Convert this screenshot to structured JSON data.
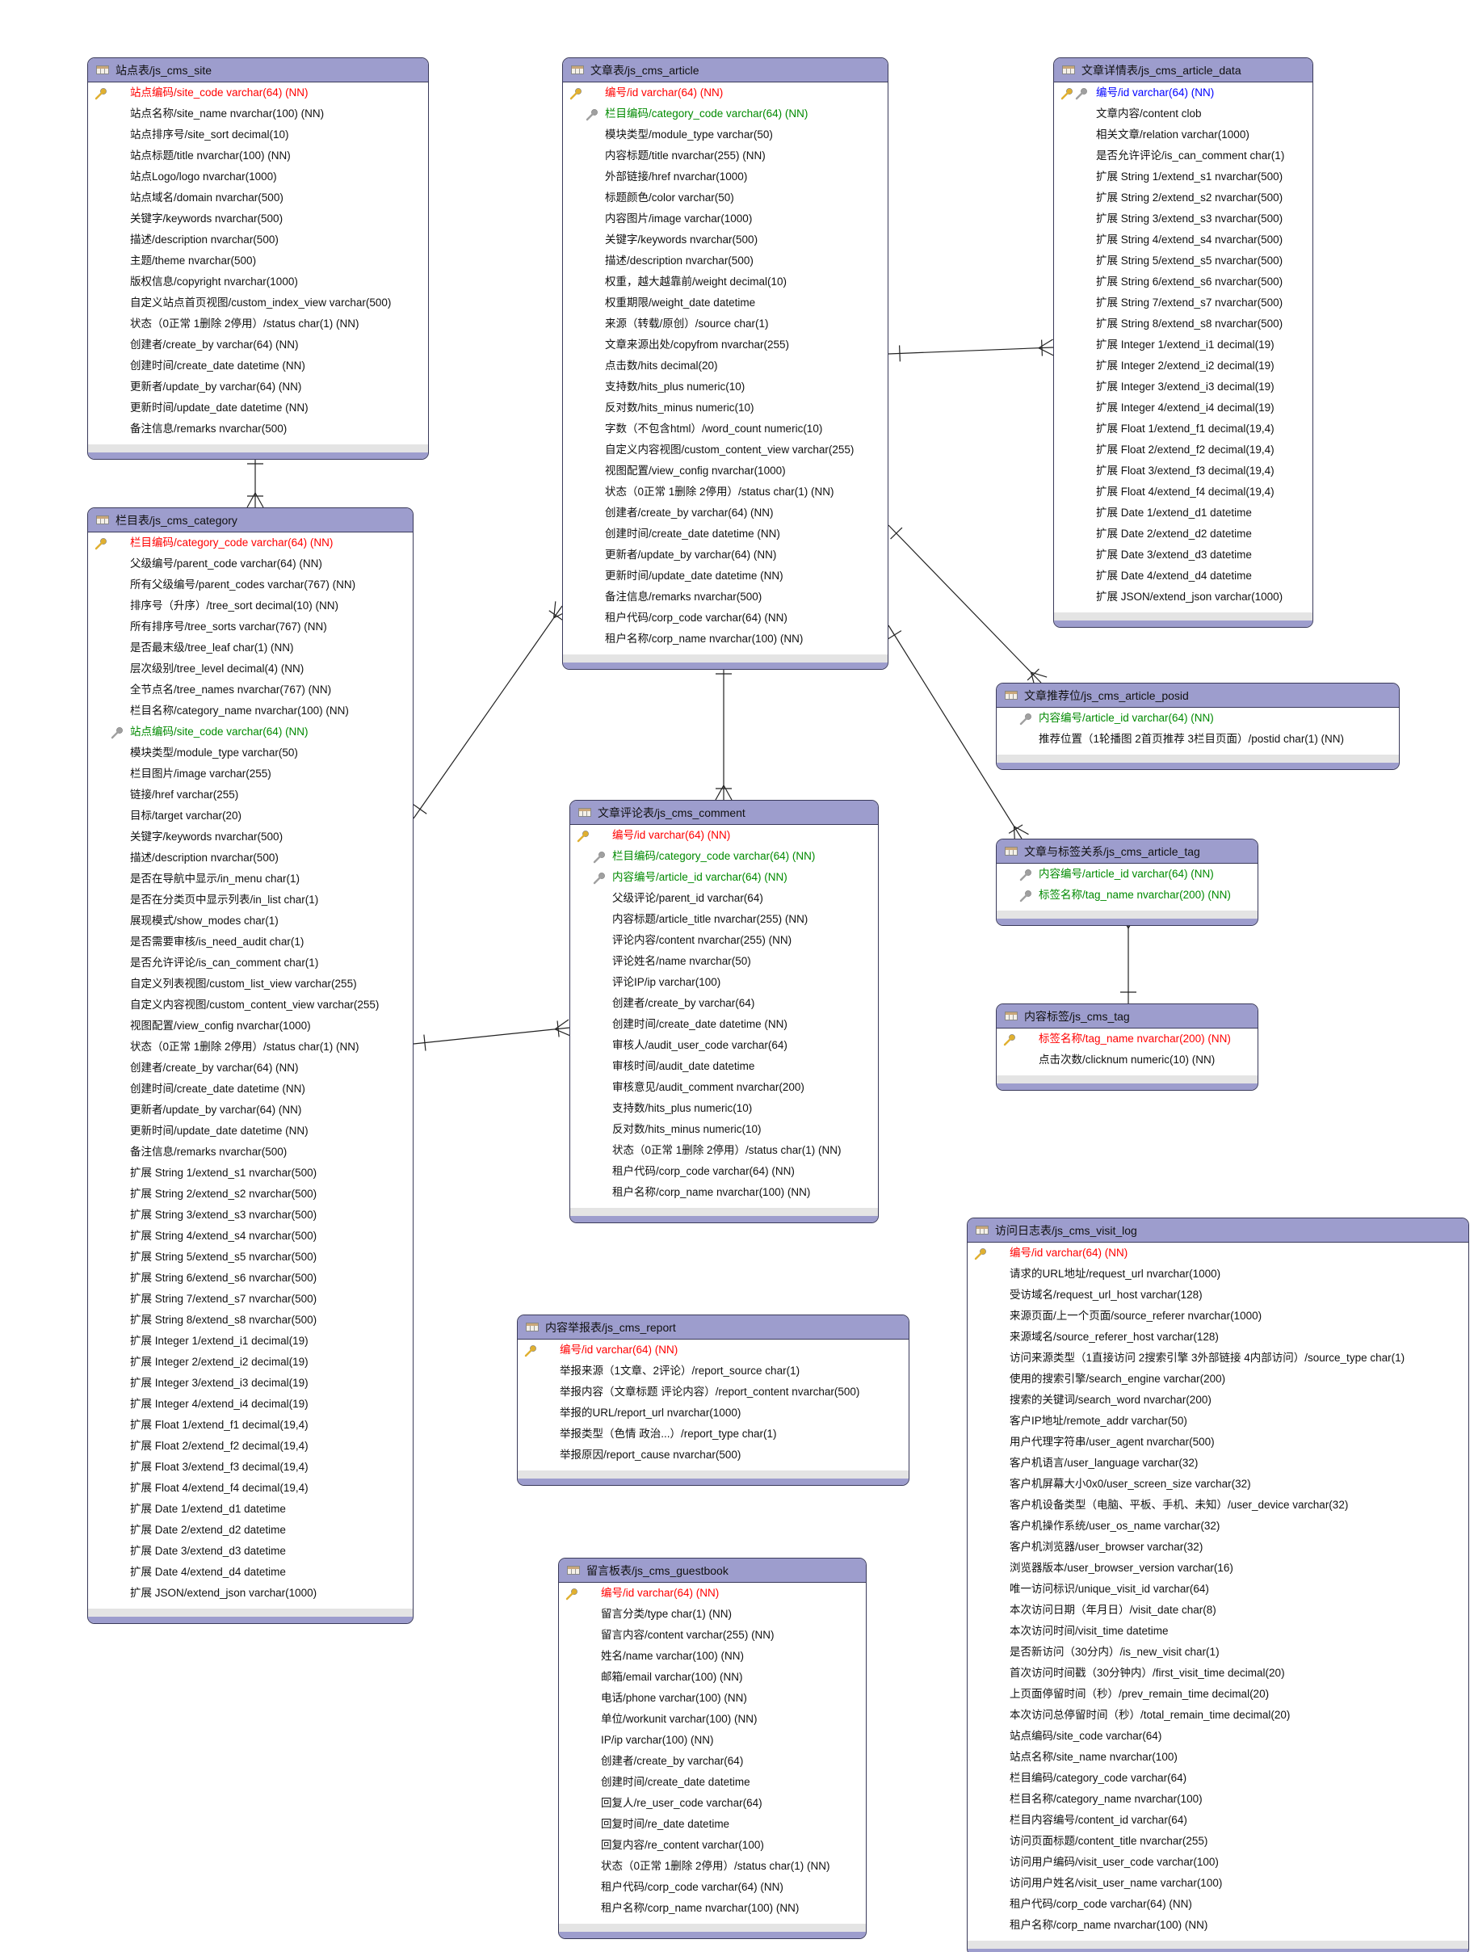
{
  "colors": {
    "header": "#9d9dcd",
    "primary_key": "#ff0000",
    "foreign_key": "#008a00",
    "primary_foreign_key": "#0000ff",
    "border": "#3a3a5a"
  },
  "tables": [
    {
      "id": "site",
      "title": "站点表/js_cms_site",
      "rows": [
        {
          "text": "站点编码/site_code varchar(64) (NN)",
          "kind": "pk"
        },
        {
          "text": "站点名称/site_name nvarchar(100) (NN)"
        },
        {
          "text": "站点排序号/site_sort decimal(10)"
        },
        {
          "text": "站点标题/title nvarchar(100) (NN)"
        },
        {
          "text": "站点Logo/logo nvarchar(1000)"
        },
        {
          "text": "站点域名/domain nvarchar(500)"
        },
        {
          "text": "关键字/keywords nvarchar(500)"
        },
        {
          "text": "描述/description nvarchar(500)"
        },
        {
          "text": "主题/theme nvarchar(500)"
        },
        {
          "text": "版权信息/copyright nvarchar(1000)"
        },
        {
          "text": "自定义站点首页视图/custom_index_view varchar(500)"
        },
        {
          "text": "状态（0正常 1删除 2停用）/status char(1) (NN)"
        },
        {
          "text": "创建者/create_by varchar(64) (NN)"
        },
        {
          "text": "创建时间/create_date datetime (NN)"
        },
        {
          "text": "更新者/update_by varchar(64) (NN)"
        },
        {
          "text": "更新时间/update_date datetime (NN)"
        },
        {
          "text": "备注信息/remarks nvarchar(500)"
        }
      ]
    },
    {
      "id": "category",
      "title": "栏目表/js_cms_category",
      "rows": [
        {
          "text": "栏目编码/category_code varchar(64) (NN)",
          "kind": "pk"
        },
        {
          "text": "父级编号/parent_code varchar(64) (NN)"
        },
        {
          "text": "所有父级编号/parent_codes varchar(767) (NN)"
        },
        {
          "text": "排序号（升序）/tree_sort decimal(10) (NN)"
        },
        {
          "text": "所有排序号/tree_sorts varchar(767) (NN)"
        },
        {
          "text": "是否最末级/tree_leaf char(1) (NN)"
        },
        {
          "text": "层次级别/tree_level decimal(4) (NN)"
        },
        {
          "text": "全节点名/tree_names nvarchar(767) (NN)"
        },
        {
          "text": "栏目名称/category_name nvarchar(100) (NN)"
        },
        {
          "text": "站点编码/site_code varchar(64) (NN)",
          "kind": "fk"
        },
        {
          "text": "模块类型/module_type varchar(50)"
        },
        {
          "text": "栏目图片/image varchar(255)"
        },
        {
          "text": "链接/href varchar(255)"
        },
        {
          "text": "目标/target varchar(20)"
        },
        {
          "text": "关键字/keywords nvarchar(500)"
        },
        {
          "text": "描述/description nvarchar(500)"
        },
        {
          "text": "是否在导航中显示/in_menu char(1)"
        },
        {
          "text": "是否在分类页中显示列表/in_list char(1)"
        },
        {
          "text": "展现模式/show_modes char(1)"
        },
        {
          "text": "是否需要审核/is_need_audit char(1)"
        },
        {
          "text": "是否允许评论/is_can_comment char(1)"
        },
        {
          "text": "自定义列表视图/custom_list_view varchar(255)"
        },
        {
          "text": "自定义内容视图/custom_content_view varchar(255)"
        },
        {
          "text": "视图配置/view_config nvarchar(1000)"
        },
        {
          "text": "状态（0正常 1删除 2停用）/status char(1) (NN)"
        },
        {
          "text": "创建者/create_by varchar(64) (NN)"
        },
        {
          "text": "创建时间/create_date datetime (NN)"
        },
        {
          "text": "更新者/update_by varchar(64) (NN)"
        },
        {
          "text": "更新时间/update_date datetime (NN)"
        },
        {
          "text": "备注信息/remarks nvarchar(500)"
        },
        {
          "text": "扩展 String 1/extend_s1 nvarchar(500)"
        },
        {
          "text": "扩展 String 2/extend_s2 nvarchar(500)"
        },
        {
          "text": "扩展 String 3/extend_s3 nvarchar(500)"
        },
        {
          "text": "扩展 String 4/extend_s4 nvarchar(500)"
        },
        {
          "text": "扩展 String 5/extend_s5 nvarchar(500)"
        },
        {
          "text": "扩展 String 6/extend_s6 nvarchar(500)"
        },
        {
          "text": "扩展 String 7/extend_s7 nvarchar(500)"
        },
        {
          "text": "扩展 String 8/extend_s8 nvarchar(500)"
        },
        {
          "text": "扩展 Integer 1/extend_i1 decimal(19)"
        },
        {
          "text": "扩展 Integer 2/extend_i2 decimal(19)"
        },
        {
          "text": "扩展 Integer 3/extend_i3 decimal(19)"
        },
        {
          "text": "扩展 Integer 4/extend_i4 decimal(19)"
        },
        {
          "text": "扩展 Float 1/extend_f1 decimal(19,4)"
        },
        {
          "text": "扩展 Float 2/extend_f2 decimal(19,4)"
        },
        {
          "text": "扩展 Float 3/extend_f3 decimal(19,4)"
        },
        {
          "text": "扩展 Float 4/extend_f4 decimal(19,4)"
        },
        {
          "text": "扩展 Date 1/extend_d1 datetime"
        },
        {
          "text": "扩展 Date 2/extend_d2 datetime"
        },
        {
          "text": "扩展 Date 3/extend_d3 datetime"
        },
        {
          "text": "扩展 Date 4/extend_d4 datetime"
        },
        {
          "text": "扩展 JSON/extend_json varchar(1000)"
        }
      ]
    },
    {
      "id": "article",
      "title": "文章表/js_cms_article",
      "rows": [
        {
          "text": "编号/id varchar(64) (NN)",
          "kind": "pk"
        },
        {
          "text": "栏目编码/category_code varchar(64) (NN)",
          "kind": "fk"
        },
        {
          "text": "模块类型/module_type varchar(50)"
        },
        {
          "text": "内容标题/title nvarchar(255) (NN)"
        },
        {
          "text": "外部链接/href nvarchar(1000)"
        },
        {
          "text": "标题颜色/color varchar(50)"
        },
        {
          "text": "内容图片/image varchar(1000)"
        },
        {
          "text": "关键字/keywords nvarchar(500)"
        },
        {
          "text": "描述/description nvarchar(500)"
        },
        {
          "text": "权重，越大越靠前/weight decimal(10)"
        },
        {
          "text": "权重期限/weight_date datetime"
        },
        {
          "text": "来源（转载/原创）/source char(1)"
        },
        {
          "text": "文章来源出处/copyfrom nvarchar(255)"
        },
        {
          "text": "点击数/hits decimal(20)"
        },
        {
          "text": "支持数/hits_plus numeric(10)"
        },
        {
          "text": "反对数/hits_minus numeric(10)"
        },
        {
          "text": "字数（不包含html）/word_count numeric(10)"
        },
        {
          "text": "自定义内容视图/custom_content_view varchar(255)"
        },
        {
          "text": "视图配置/view_config nvarchar(1000)"
        },
        {
          "text": "状态（0正常 1删除 2停用）/status char(1) (NN)"
        },
        {
          "text": "创建者/create_by varchar(64) (NN)"
        },
        {
          "text": "创建时间/create_date datetime (NN)"
        },
        {
          "text": "更新者/update_by varchar(64) (NN)"
        },
        {
          "text": "更新时间/update_date datetime (NN)"
        },
        {
          "text": "备注信息/remarks nvarchar(500)"
        },
        {
          "text": "租户代码/corp_code varchar(64) (NN)"
        },
        {
          "text": "租户名称/corp_name nvarchar(100) (NN)"
        }
      ]
    },
    {
      "id": "article_data",
      "title": "文章详情表/js_cms_article_data",
      "rows": [
        {
          "text": "编号/id varchar(64) (NN)",
          "kind": "pkfk"
        },
        {
          "text": "文章内容/content clob"
        },
        {
          "text": "相关文章/relation varchar(1000)"
        },
        {
          "text": "是否允许评论/is_can_comment char(1)"
        },
        {
          "text": "扩展 String 1/extend_s1 nvarchar(500)"
        },
        {
          "text": "扩展 String 2/extend_s2 nvarchar(500)"
        },
        {
          "text": "扩展 String 3/extend_s3 nvarchar(500)"
        },
        {
          "text": "扩展 String 4/extend_s4 nvarchar(500)"
        },
        {
          "text": "扩展 String 5/extend_s5 nvarchar(500)"
        },
        {
          "text": "扩展 String 6/extend_s6 nvarchar(500)"
        },
        {
          "text": "扩展 String 7/extend_s7 nvarchar(500)"
        },
        {
          "text": "扩展 String 8/extend_s8 nvarchar(500)"
        },
        {
          "text": "扩展 Integer 1/extend_i1 decimal(19)"
        },
        {
          "text": "扩展 Integer 2/extend_i2 decimal(19)"
        },
        {
          "text": "扩展 Integer 3/extend_i3 decimal(19)"
        },
        {
          "text": "扩展 Integer 4/extend_i4 decimal(19)"
        },
        {
          "text": "扩展 Float 1/extend_f1 decimal(19,4)"
        },
        {
          "text": "扩展 Float 2/extend_f2 decimal(19,4)"
        },
        {
          "text": "扩展 Float 3/extend_f3 decimal(19,4)"
        },
        {
          "text": "扩展 Float 4/extend_f4 decimal(19,4)"
        },
        {
          "text": "扩展 Date 1/extend_d1 datetime"
        },
        {
          "text": "扩展 Date 2/extend_d2 datetime"
        },
        {
          "text": "扩展 Date 3/extend_d3 datetime"
        },
        {
          "text": "扩展 Date 4/extend_d4 datetime"
        },
        {
          "text": "扩展 JSON/extend_json varchar(1000)"
        }
      ]
    },
    {
      "id": "posid",
      "title": "文章推荐位/js_cms_article_posid",
      "rows": [
        {
          "text": "内容编号/article_id varchar(64) (NN)",
          "kind": "fk"
        },
        {
          "text": "推荐位置（1轮播图 2首页推荐 3栏目页面）/postid char(1) (NN)"
        }
      ]
    },
    {
      "id": "comment",
      "title": "文章评论表/js_cms_comment",
      "rows": [
        {
          "text": "编号/id varchar(64) (NN)",
          "kind": "pk"
        },
        {
          "text": "栏目编码/category_code varchar(64) (NN)",
          "kind": "fk"
        },
        {
          "text": "内容编号/article_id varchar(64) (NN)",
          "kind": "fk"
        },
        {
          "text": "父级评论/parent_id varchar(64)"
        },
        {
          "text": "内容标题/article_title nvarchar(255) (NN)"
        },
        {
          "text": "评论内容/content nvarchar(255) (NN)"
        },
        {
          "text": "评论姓名/name nvarchar(50)"
        },
        {
          "text": "评论IP/ip varchar(100)"
        },
        {
          "text": "创建者/create_by varchar(64)"
        },
        {
          "text": "创建时间/create_date datetime (NN)"
        },
        {
          "text": "审核人/audit_user_code varchar(64)"
        },
        {
          "text": "审核时间/audit_date datetime"
        },
        {
          "text": "审核意见/audit_comment nvarchar(200)"
        },
        {
          "text": "支持数/hits_plus numeric(10)"
        },
        {
          "text": "反对数/hits_minus numeric(10)"
        },
        {
          "text": "状态（0正常 1删除 2停用）/status char(1) (NN)"
        },
        {
          "text": "租户代码/corp_code varchar(64) (NN)"
        },
        {
          "text": "租户名称/corp_name nvarchar(100) (NN)"
        }
      ]
    },
    {
      "id": "article_tag",
      "title": "文章与标签关系/js_cms_article_tag",
      "rows": [
        {
          "text": "内容编号/article_id varchar(64) (NN)",
          "kind": "fk"
        },
        {
          "text": "标签名称/tag_name nvarchar(200) (NN)",
          "kind": "fk"
        }
      ]
    },
    {
      "id": "tag",
      "title": "内容标签/js_cms_tag",
      "rows": [
        {
          "text": "标签名称/tag_name nvarchar(200) (NN)",
          "kind": "pk"
        },
        {
          "text": "点击次数/clicknum numeric(10) (NN)"
        }
      ]
    },
    {
      "id": "visit_log",
      "title": "访问日志表/js_cms_visit_log",
      "rows": [
        {
          "text": "编号/id varchar(64) (NN)",
          "kind": "pk"
        },
        {
          "text": "请求的URL地址/request_url nvarchar(1000)"
        },
        {
          "text": "受访域名/request_url_host varchar(128)"
        },
        {
          "text": "来源页面/上一个页面/source_referer nvarchar(1000)"
        },
        {
          "text": "来源域名/source_referer_host varchar(128)"
        },
        {
          "text": "访问来源类型（1直接访问 2搜索引擎 3外部链接 4内部访问）/source_type char(1)"
        },
        {
          "text": "使用的搜索引擎/search_engine varchar(200)"
        },
        {
          "text": "搜索的关键词/search_word nvarchar(200)"
        },
        {
          "text": "客户IP地址/remote_addr varchar(50)"
        },
        {
          "text": "用户代理字符串/user_agent nvarchar(500)"
        },
        {
          "text": "客户机语言/user_language varchar(32)"
        },
        {
          "text": "客户机屏幕大小0x0/user_screen_size varchar(32)"
        },
        {
          "text": "客户机设备类型（电脑、平板、手机、未知）/user_device varchar(32)"
        },
        {
          "text": "客户机操作系统/user_os_name varchar(32)"
        },
        {
          "text": "客户机浏览器/user_browser varchar(32)"
        },
        {
          "text": "浏览器版本/user_browser_version varchar(16)"
        },
        {
          "text": "唯一访问标识/unique_visit_id varchar(64)"
        },
        {
          "text": "本次访问日期（年月日）/visit_date char(8)"
        },
        {
          "text": "本次访问时间/visit_time datetime"
        },
        {
          "text": "是否新访问（30分内）/is_new_visit char(1)"
        },
        {
          "text": "首次访问时间戳（30分钟内）/first_visit_time decimal(20)"
        },
        {
          "text": "上页面停留时间（秒）/prev_remain_time decimal(20)"
        },
        {
          "text": "本次访问总停留时间（秒）/total_remain_time decimal(20)"
        },
        {
          "text": "站点编码/site_code varchar(64)"
        },
        {
          "text": "站点名称/site_name nvarchar(100)"
        },
        {
          "text": "栏目编码/category_code varchar(64)"
        },
        {
          "text": "栏目名称/category_name nvarchar(100)"
        },
        {
          "text": "栏目内容编号/content_id varchar(64)"
        },
        {
          "text": "访问页面标题/content_title nvarchar(255)"
        },
        {
          "text": "访问用户编码/visit_user_code varchar(100)"
        },
        {
          "text": "访问用户姓名/visit_user_name varchar(100)"
        },
        {
          "text": "租户代码/corp_code varchar(64) (NN)"
        },
        {
          "text": "租户名称/corp_name nvarchar(100) (NN)"
        }
      ]
    },
    {
      "id": "report",
      "title": "内容举报表/js_cms_report",
      "rows": [
        {
          "text": "编号/id varchar(64) (NN)",
          "kind": "pk"
        },
        {
          "text": "举报来源（1文章、2评论）/report_source char(1)"
        },
        {
          "text": "举报内容（文章标题 评论内容）/report_content nvarchar(500)"
        },
        {
          "text": "举报的URL/report_url nvarchar(1000)"
        },
        {
          "text": "举报类型（色情 政治...）/report_type char(1)"
        },
        {
          "text": "举报原因/report_cause nvarchar(500)"
        }
      ]
    },
    {
      "id": "guestbook",
      "title": "留言板表/js_cms_guestbook",
      "rows": [
        {
          "text": "编号/id varchar(64) (NN)",
          "kind": "pk"
        },
        {
          "text": "留言分类/type char(1) (NN)"
        },
        {
          "text": "留言内容/content varchar(255) (NN)"
        },
        {
          "text": "姓名/name varchar(100) (NN)"
        },
        {
          "text": "邮箱/email varchar(100) (NN)"
        },
        {
          "text": "电话/phone varchar(100) (NN)"
        },
        {
          "text": "单位/workunit varchar(100) (NN)"
        },
        {
          "text": "IP/ip varchar(100) (NN)"
        },
        {
          "text": "创建者/create_by varchar(64)"
        },
        {
          "text": "创建时间/create_date datetime"
        },
        {
          "text": "回复人/re_user_code varchar(64)"
        },
        {
          "text": "回复时间/re_date datetime"
        },
        {
          "text": "回复内容/re_content varchar(100)"
        },
        {
          "text": "状态（0正常 1删除 2停用）/status char(1) (NN)"
        },
        {
          "text": "租户代码/corp_code varchar(64) (NN)"
        },
        {
          "text": "租户名称/corp_name nvarchar(100) (NN)"
        }
      ]
    }
  ],
  "relationships": [
    {
      "from": "site",
      "to": "category"
    },
    {
      "from": "category",
      "to": "article"
    },
    {
      "from": "article",
      "to": "article_data"
    },
    {
      "from": "article",
      "to": "comment"
    },
    {
      "from": "category",
      "to": "comment"
    },
    {
      "from": "article",
      "to": "posid"
    },
    {
      "from": "article",
      "to": "article_tag"
    },
    {
      "from": "tag",
      "to": "article_tag"
    }
  ]
}
